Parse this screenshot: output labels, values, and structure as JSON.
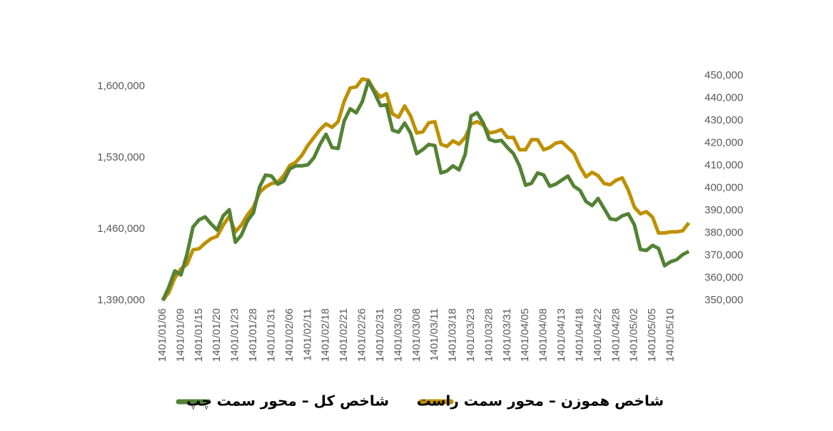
{
  "chart_data": {
    "type": "line",
    "categories": [
      "1401/01/06",
      null,
      null,
      "1401/01/09",
      null,
      null,
      "1401/01/15",
      null,
      null,
      "1401/01/20",
      null,
      null,
      "1401/01/23",
      null,
      null,
      "1401/01/28",
      null,
      null,
      "1401/01/31",
      null,
      null,
      "1401/02/06",
      null,
      null,
      "1401/02/11",
      null,
      null,
      "1401/02/18",
      null,
      null,
      "1401/02/21",
      null,
      null,
      "1401/02/26",
      null,
      null,
      "1401/02/31",
      null,
      null,
      "1401/03/03",
      null,
      null,
      "1401/03/08",
      null,
      null,
      "1401/03/11",
      null,
      null,
      "1401/03/18",
      null,
      null,
      "1401/03/23",
      null,
      null,
      "1401/03/28",
      null,
      null,
      "1401/03/31",
      null,
      null,
      "1401/04/05",
      null,
      null,
      "1401/04/08",
      null,
      null,
      "1401/04/13",
      null,
      null,
      "1401/04/18",
      null,
      null,
      "1401/04/22",
      null,
      null,
      "1401/04/28",
      null,
      null,
      "1401/05/02",
      null,
      null,
      "1401/05/05",
      null,
      null,
      "1401/05/10",
      null,
      null,
      null
    ],
    "series": [
      {
        "name": "شاخص کل – محور سمت چپ",
        "color": "#548235",
        "axis": "y",
        "values": [
          1390000,
          1403000,
          1419000,
          1415000,
          1435000,
          1462000,
          1469000,
          1472000,
          1465000,
          1459000,
          1473000,
          1479000,
          1447000,
          1454000,
          1468000,
          1476000,
          1501000,
          1513000,
          1512000,
          1504000,
          1507000,
          1519000,
          1522000,
          1522000,
          1523000,
          1530000,
          1543000,
          1553000,
          1540000,
          1539000,
          1566000,
          1578000,
          1574000,
          1585000,
          1605000,
          1594000,
          1581000,
          1582000,
          1557000,
          1555000,
          1564000,
          1554000,
          1534000,
          1538000,
          1543000,
          1542000,
          1515000,
          1517000,
          1522000,
          1518000,
          1533000,
          1571000,
          1574000,
          1564000,
          1548000,
          1546000,
          1547000,
          1540000,
          1534000,
          1522000,
          1503000,
          1505000,
          1515000,
          1513000,
          1502000,
          1504000,
          1508000,
          1512000,
          1502000,
          1498000,
          1487000,
          1483000,
          1490000,
          1480000,
          1470000,
          1469000,
          1473000,
          1475000,
          1464000,
          1440000,
          1439000,
          1444000,
          1441000,
          1424000,
          1428000,
          1430000,
          1435000,
          1438000
        ]
      },
      {
        "name": "شاخص هموزن – محور سمت راست",
        "color": "#bf9000",
        "axis": "y2",
        "values": [
          350000,
          353500,
          360000,
          364000,
          366000,
          372500,
          373000,
          375500,
          377500,
          378500,
          383500,
          387500,
          380500,
          383500,
          388000,
          391500,
          398000,
          400500,
          402000,
          402500,
          405500,
          410000,
          411500,
          414500,
          419000,
          422500,
          426000,
          428500,
          427000,
          429500,
          438500,
          444500,
          445000,
          448500,
          448000,
          443500,
          440500,
          442000,
          433000,
          431500,
          436500,
          432000,
          424500,
          425000,
          429000,
          429500,
          419500,
          418500,
          421000,
          419500,
          422500,
          428500,
          429500,
          428000,
          424500,
          425000,
          426000,
          422500,
          422500,
          417000,
          417000,
          421500,
          421500,
          417000,
          418000,
          420000,
          420500,
          418000,
          415500,
          409500,
          405000,
          407000,
          405500,
          402000,
          401500,
          403500,
          404500,
          399000,
          391500,
          388500,
          389500,
          387000,
          380000,
          380000,
          380500,
          380500,
          381000,
          384500
        ]
      }
    ],
    "ylim": [
      1390000,
      1610500
    ],
    "yticks": [
      {
        "value": 1390000,
        "label": "1,390,000"
      },
      {
        "value": 1460000,
        "label": "1,460,000"
      },
      {
        "value": 1530000,
        "label": "1,530,000"
      },
      {
        "value": 1600000,
        "label": "1,600,000"
      }
    ],
    "y2lim": [
      350000,
      450000
    ],
    "y2ticks": [
      {
        "value": 350000,
        "label": "350,000"
      },
      {
        "value": 360000,
        "label": "360,000"
      },
      {
        "value": 370000,
        "label": "370,000"
      },
      {
        "value": 380000,
        "label": "380,000"
      },
      {
        "value": 390000,
        "label": "390,000"
      },
      {
        "value": 400000,
        "label": "400,000"
      },
      {
        "value": 410000,
        "label": "410,000"
      },
      {
        "value": 420000,
        "label": "420,000"
      },
      {
        "value": 430000,
        "label": "430,000"
      },
      {
        "value": 440000,
        "label": "440,000"
      },
      {
        "value": 450000,
        "label": "450,000"
      }
    ],
    "legend": "bottom"
  }
}
